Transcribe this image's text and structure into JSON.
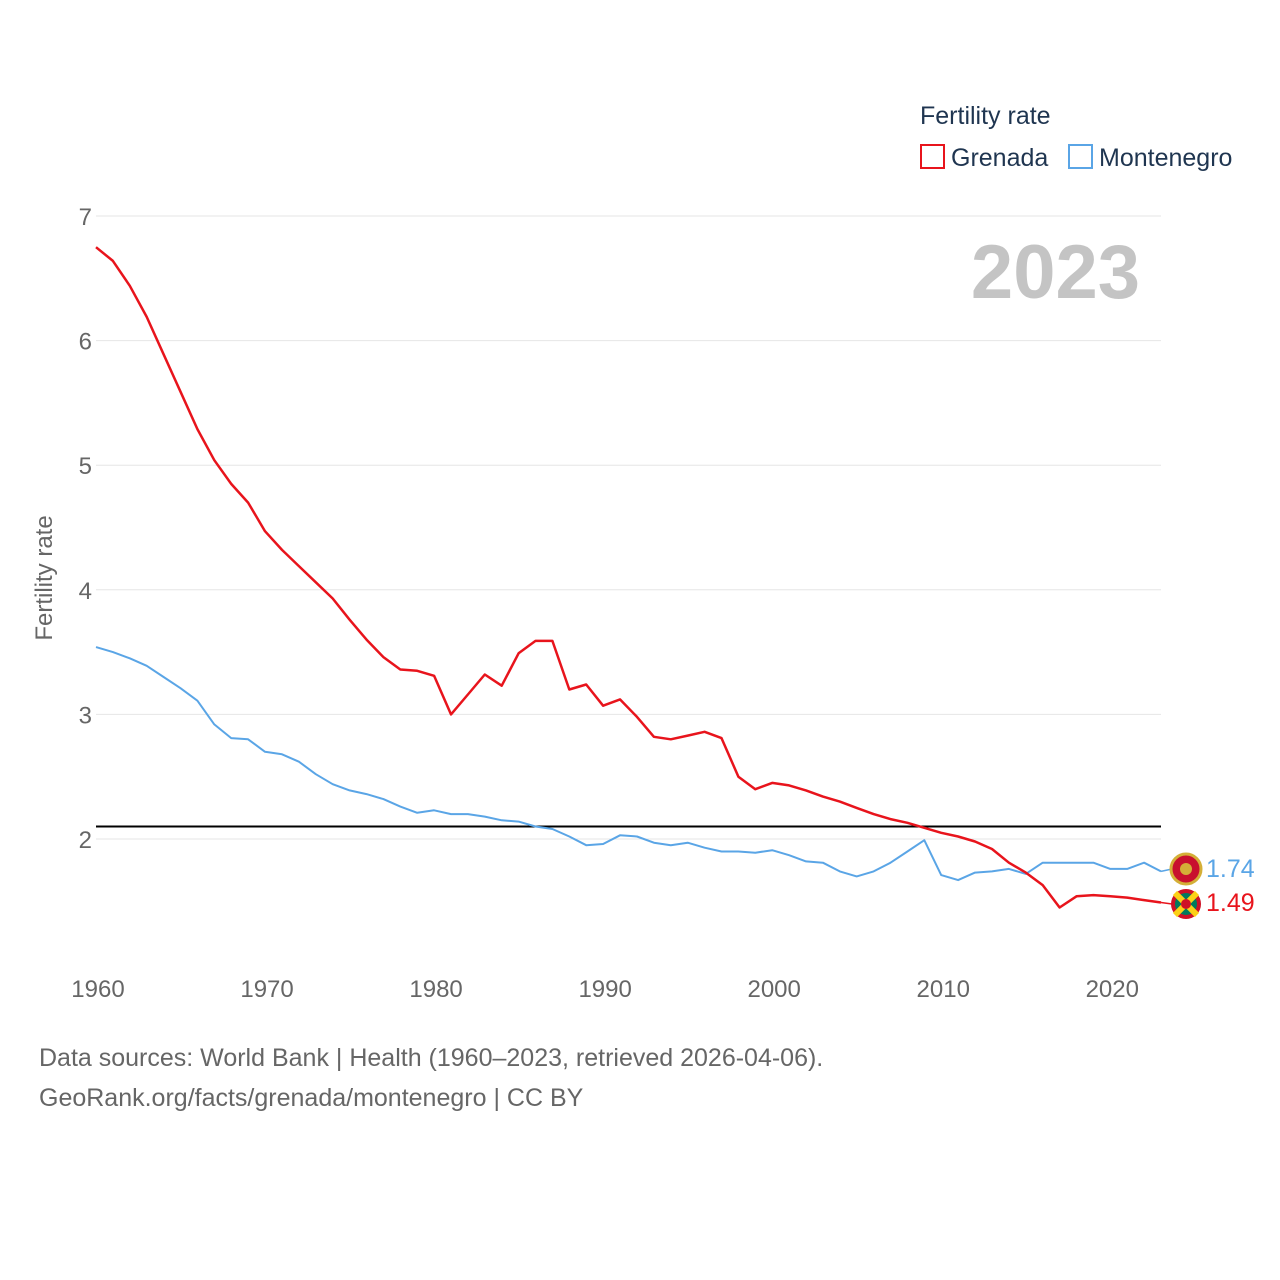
{
  "chart_data": {
    "type": "line",
    "title": "Fertility rate",
    "year_watermark": "2023",
    "xlabel": "",
    "ylabel": "Fertility rate",
    "xlim": [
      1960,
      2023
    ],
    "ylim": [
      1.0,
      7.0
    ],
    "x_ticks": [
      1960,
      1970,
      1980,
      1990,
      2000,
      2010,
      2020
    ],
    "y_ticks": [
      2,
      3,
      4,
      5,
      6,
      7
    ],
    "reference_line": 2.1,
    "grid": true,
    "legend_position": "top-right",
    "x": [
      1960,
      1961,
      1962,
      1963,
      1964,
      1965,
      1966,
      1967,
      1968,
      1969,
      1970,
      1971,
      1972,
      1973,
      1974,
      1975,
      1976,
      1977,
      1978,
      1979,
      1980,
      1981,
      1982,
      1983,
      1984,
      1985,
      1986,
      1987,
      1988,
      1989,
      1990,
      1991,
      1992,
      1993,
      1994,
      1995,
      1996,
      1997,
      1998,
      1999,
      2000,
      2001,
      2002,
      2003,
      2004,
      2005,
      2006,
      2007,
      2008,
      2009,
      2010,
      2011,
      2012,
      2013,
      2014,
      2015,
      2016,
      2017,
      2018,
      2019,
      2020,
      2021,
      2022,
      2023
    ],
    "series": [
      {
        "name": "Grenada",
        "color": "#e8141c",
        "end_label": "1.49",
        "values": [
          6.75,
          6.64,
          6.44,
          6.19,
          5.89,
          5.59,
          5.29,
          5.04,
          4.85,
          4.7,
          4.47,
          4.32,
          4.19,
          4.06,
          3.93,
          3.76,
          3.6,
          3.46,
          3.36,
          3.35,
          3.31,
          3.0,
          3.16,
          3.32,
          3.23,
          3.49,
          3.59,
          3.59,
          3.2,
          3.24,
          3.07,
          3.12,
          2.98,
          2.82,
          2.8,
          2.83,
          2.86,
          2.81,
          2.5,
          2.4,
          2.45,
          2.43,
          2.39,
          2.34,
          2.3,
          2.25,
          2.2,
          2.16,
          2.13,
          2.09,
          2.05,
          2.02,
          1.98,
          1.92,
          1.81,
          1.73,
          1.63,
          1.45,
          1.54,
          1.55,
          1.54,
          1.53,
          1.51,
          1.49
        ]
      },
      {
        "name": "Montenegro",
        "color": "#5aa5e6",
        "end_label": "1.74",
        "values": [
          3.54,
          3.5,
          3.45,
          3.39,
          3.3,
          3.21,
          3.11,
          2.92,
          2.81,
          2.8,
          2.7,
          2.68,
          2.62,
          2.52,
          2.44,
          2.39,
          2.36,
          2.32,
          2.26,
          2.21,
          2.23,
          2.2,
          2.2,
          2.18,
          2.15,
          2.14,
          2.1,
          2.08,
          2.02,
          1.95,
          1.96,
          2.03,
          2.02,
          1.97,
          1.95,
          1.97,
          1.93,
          1.9,
          1.9,
          1.89,
          1.91,
          1.87,
          1.82,
          1.81,
          1.74,
          1.7,
          1.74,
          1.81,
          1.9,
          1.99,
          1.71,
          1.67,
          1.73,
          1.74,
          1.76,
          1.72,
          1.81,
          1.81,
          1.81,
          1.81,
          1.76,
          1.76,
          1.81,
          1.74
        ]
      }
    ]
  },
  "footer": {
    "line1": "Data sources: World Bank | Health (1960–2023, retrieved 2026-04-06).",
    "line2": "GeoRank.org/facts/grenada/montenegro | CC BY"
  },
  "colors": {
    "grenada": "#e8141c",
    "montenegro": "#5aa5e6",
    "axis_text": "#666666",
    "legend_text": "#1f3550",
    "watermark": "#c4c4c4",
    "gridline": "#e6e6e6"
  }
}
